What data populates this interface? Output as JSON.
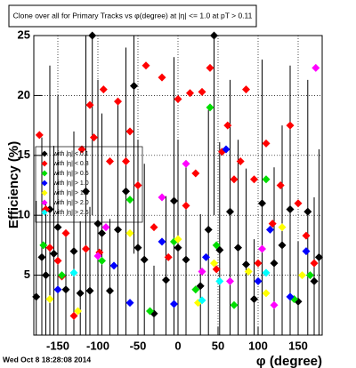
{
  "chart_data": {
    "type": "scatter",
    "title": "Clone over all for Primary Tracks vs φ(degree) at |η| <= 1.0 at pT > 0.11",
    "x_label": "φ (degree)",
    "y_label": "Efficiency (%)",
    "timestamp": "Wed Oct  8 18:28:08 2014",
    "xlim": [
      -180,
      180
    ],
    "ylim": [
      0,
      25
    ],
    "xticks": [
      -150,
      -100,
      -50,
      0,
      50,
      100,
      150
    ],
    "yticks": [
      5,
      10,
      15,
      20,
      25
    ],
    "grid": true,
    "series": [
      {
        "name": "with |η| < 0.1",
        "color": "#000000",
        "x": [
          -177,
          -170,
          -165,
          -160,
          -155,
          -150,
          -140,
          -130,
          -122,
          -115,
          -110,
          -107,
          -100,
          -95,
          -85,
          -75,
          -65,
          -55,
          -50,
          -42,
          -30,
          -15,
          -5,
          0,
          10,
          28,
          38,
          45,
          52,
          65,
          75,
          85,
          95,
          105,
          120,
          130,
          140,
          150,
          162,
          170,
          176
        ],
        "values": [
          3.2,
          6.5,
          5,
          10.5,
          6.8,
          9,
          3.8,
          7,
          3.5,
          12,
          3.7,
          25,
          9.3,
          8.5,
          3.7,
          8.8,
          12,
          20.8,
          7.3,
          6.3,
          1.8,
          4.6,
          11.2,
          7.3,
          6.3,
          4.1,
          8.8,
          25,
          7.1,
          10.3,
          7.3,
          5.9,
          3,
          11,
          6,
          7.5,
          10.5,
          2.8,
          10.3,
          4.5,
          6.5
        ],
        "errors": [
          8,
          10,
          6,
          12,
          9,
          11,
          5,
          10,
          6,
          13,
          7,
          15,
          12,
          10,
          6,
          11,
          12,
          14,
          9,
          8,
          4,
          7,
          12,
          9,
          8,
          6,
          10,
          15,
          9,
          11,
          9,
          8,
          5,
          12,
          8,
          10,
          12,
          5,
          11,
          7,
          9
        ]
      },
      {
        "name": "with |η| < 0.3",
        "color": "#ff0000",
        "x": [
          -173,
          -165,
          -160,
          -150,
          -145,
          -140,
          -130,
          -120,
          -115,
          -110,
          -105,
          -98,
          -93,
          -85,
          -75,
          -65,
          -60,
          -50,
          -40,
          -30,
          -20,
          -12,
          0,
          10,
          15,
          22,
          30,
          40,
          48,
          55,
          62,
          70,
          78,
          85,
          95,
          100,
          110,
          118,
          128,
          140,
          150,
          160,
          170
        ],
        "values": [
          16.7,
          10.5,
          7.3,
          6.2,
          4.9,
          8.5,
          1.6,
          15.5,
          7.2,
          19.2,
          16.5,
          6.9,
          20.5,
          14.5,
          19.5,
          14.5,
          17,
          12.5,
          22.5,
          9,
          21.5,
          6.5,
          19.7,
          10.8,
          20.2,
          13.5,
          20.3,
          22.3,
          5.5,
          15.3,
          17.5,
          13,
          14.5,
          20.5,
          13,
          6,
          16,
          9.3,
          12.5,
          17.5,
          11,
          8.3,
          6
        ]
      },
      {
        "name": "with |η| > 0.5",
        "color": "#00dd00",
        "x": [
          -168,
          -145,
          -95,
          -60,
          -35,
          -5,
          22,
          40,
          48,
          70,
          110,
          145,
          165
        ],
        "values": [
          7.5,
          5,
          6.2,
          11.3,
          2,
          7.8,
          3.8,
          19,
          7.5,
          2.5,
          13,
          3,
          5
        ]
      },
      {
        "name": "with |η| > 1.0",
        "color": "#0000ff",
        "x": [
          -150,
          -80,
          -60,
          -20,
          -5,
          35,
          60,
          100,
          115,
          140,
          160
        ],
        "values": [
          3.8,
          5.8,
          2.7,
          7.8,
          2.6,
          6.5,
          15.5,
          4.5,
          8.8,
          3.2,
          7
        ]
      },
      {
        "name": "with |η| > 1.5",
        "color": "#ffff00",
        "x": [
          -160,
          -125,
          -60,
          0,
          25,
          45,
          88,
          110,
          130,
          155
        ],
        "values": [
          3,
          2,
          8.5,
          8,
          2.7,
          6,
          5.3,
          3.5,
          9,
          5
        ]
      },
      {
        "name": "with |η| > 2.0",
        "color": "#ff00ff",
        "x": [
          -100,
          -90,
          -20,
          10,
          30,
          65,
          105,
          120,
          172
        ],
        "values": [
          6.6,
          9,
          11.5,
          14.3,
          5.3,
          4.5,
          7.2,
          2.5,
          22.3
        ]
      },
      {
        "name": "with |η| > 2.5",
        "color": "#00ffff",
        "x": [
          -130,
          30,
          52,
          110
        ],
        "values": [
          5.2,
          2.9,
          4.5,
          5.2
        ]
      }
    ]
  }
}
